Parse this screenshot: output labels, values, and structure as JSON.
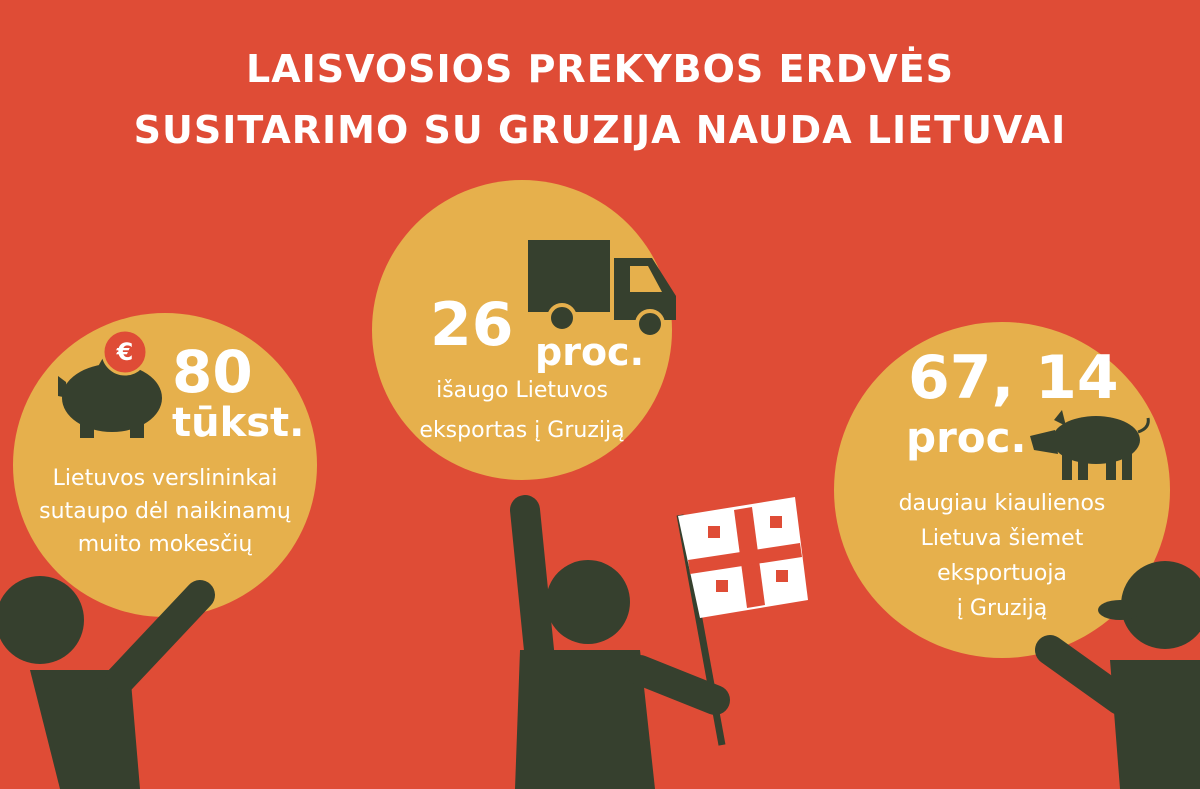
{
  "header": {
    "title_lines": [
      "LAISVOSIOS PREKYBOS ERDVĖS",
      "SUSITARIMO SU GRUZIJA NAUDA LIETUVAI"
    ]
  },
  "items": [
    {
      "currency": "€",
      "value": "80",
      "unit": "tūkst.",
      "description_lines": [
        "Lietuvos verslininkai",
        "sutaupo dėl naikinamų",
        "muito mokesčių"
      ]
    },
    {
      "value": "26",
      "unit": "proc.",
      "description_lines": [
        "išaugo Lietuvos",
        "eksportas į Gruziją"
      ]
    },
    {
      "value": "67, 14",
      "unit": "proc.",
      "description_lines": [
        "daugiau kiaulienos",
        "Lietuva šiemet",
        "eksportuoja",
        "į Gruziją"
      ]
    }
  ]
}
